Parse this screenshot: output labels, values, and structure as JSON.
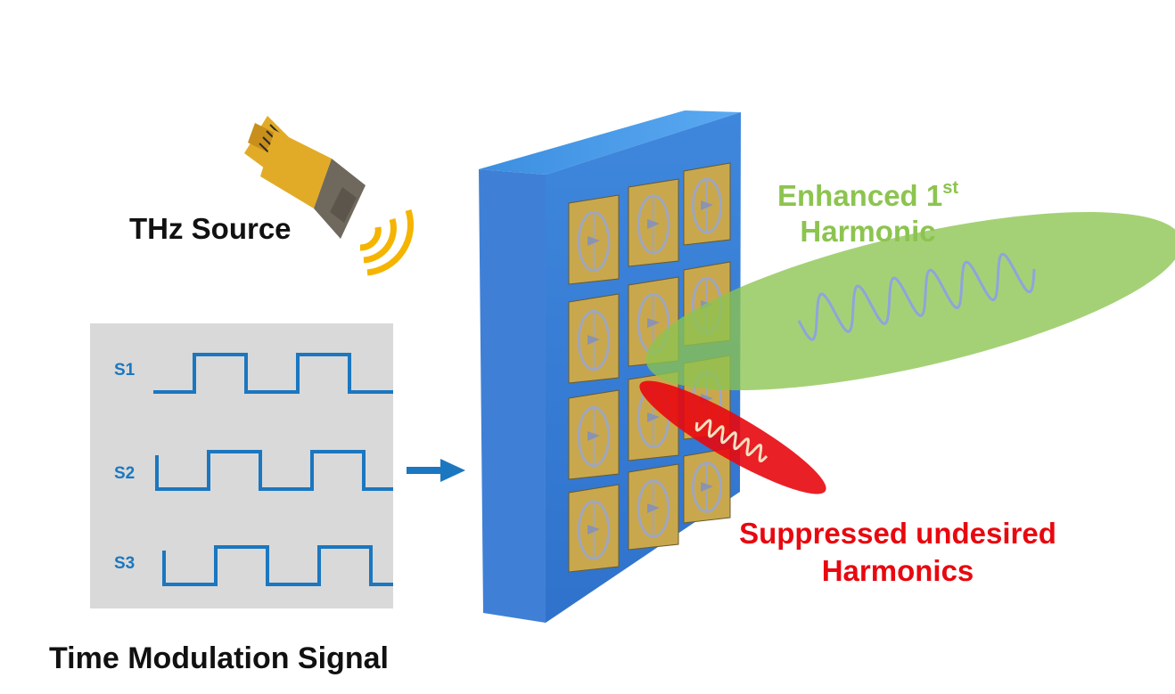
{
  "labels": {
    "thz_source": "THz Source",
    "time_modulation": "Time Modulation Signal",
    "enhanced_line1": "Enhanced 1",
    "enhanced_sup": "st",
    "enhanced_line2": "Harmonic",
    "suppressed_line1": "Suppressed undesired",
    "suppressed_line2": "Harmonics"
  },
  "signals": [
    {
      "name": "S1",
      "phase_fraction": 0.0
    },
    {
      "name": "S2",
      "phase_fraction": 0.18
    },
    {
      "name": "S3",
      "phase_fraction": 0.33
    }
  ],
  "metasurface": {
    "rows": 4,
    "columns": 3
  },
  "colors": {
    "enhanced": "#8cc44f",
    "suppressed": "#e8080f",
    "signal": "#1b77c0",
    "board": "#2f6fc4",
    "source_horn": "#e2ab27",
    "wave_arcs": "#f5b400"
  }
}
